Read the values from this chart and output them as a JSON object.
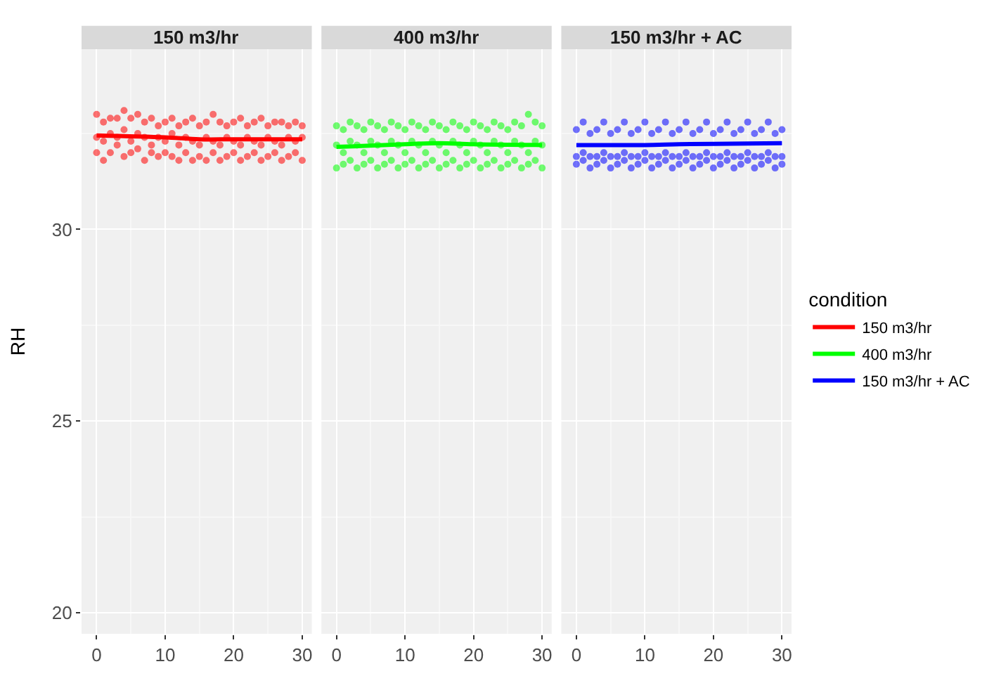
{
  "chart_data": [
    {
      "type": "scatter",
      "title": "150 m3/hr",
      "ylabel": "RH",
      "xlim": [
        -2.2,
        31.4
      ],
      "ylim": [
        19.45,
        34.7
      ],
      "xticks": [
        0,
        10,
        20,
        30
      ],
      "yticks": [
        20,
        25,
        30
      ],
      "grid": true,
      "series": [
        {
          "marker": "circle",
          "color": "#ff0000",
          "x": [
            0,
            0,
            0,
            1,
            1,
            1,
            2,
            2,
            2,
            3,
            3,
            3,
            4,
            4,
            4,
            5,
            5,
            5,
            6,
            6,
            6,
            7,
            7,
            7,
            8,
            8,
            8,
            9,
            9,
            9,
            10,
            10,
            10,
            11,
            11,
            11,
            12,
            12,
            12,
            13,
            13,
            13,
            14,
            14,
            14,
            15,
            15,
            15,
            16,
            16,
            16,
            17,
            17,
            17,
            18,
            18,
            18,
            19,
            19,
            19,
            20,
            20,
            20,
            21,
            21,
            21,
            22,
            22,
            22,
            23,
            23,
            23,
            24,
            24,
            24,
            25,
            25,
            25,
            26,
            26,
            26,
            27,
            27,
            27,
            28,
            28,
            28,
            29,
            29,
            29,
            30,
            30,
            30
          ],
          "values": [
            33.0,
            32.4,
            32.0,
            32.8,
            32.3,
            31.8,
            32.9,
            32.5,
            32.0,
            32.9,
            32.4,
            32.2,
            33.1,
            32.6,
            31.9,
            32.9,
            32.3,
            32.0,
            33.0,
            32.5,
            32.1,
            32.8,
            32.4,
            31.8,
            32.9,
            32.2,
            32.0,
            32.7,
            32.4,
            31.9,
            32.8,
            32.3,
            32.0,
            32.9,
            32.5,
            31.9,
            32.7,
            32.2,
            31.8,
            32.8,
            32.4,
            32.0,
            32.9,
            32.3,
            31.8,
            32.7,
            32.2,
            31.9,
            32.8,
            32.4,
            31.8,
            33.0,
            32.3,
            32.0,
            32.8,
            32.2,
            31.8,
            32.7,
            32.4,
            31.9,
            32.8,
            32.3,
            32.0,
            32.9,
            32.2,
            31.8,
            32.7,
            32.4,
            31.9,
            32.8,
            32.3,
            32.0,
            32.9,
            32.2,
            31.8,
            32.7,
            32.4,
            31.9,
            32.8,
            32.3,
            32.0,
            32.8,
            32.2,
            31.8,
            32.7,
            32.4,
            31.9,
            32.8,
            32.3,
            32.0,
            32.7,
            32.4,
            31.8
          ]
        },
        {
          "type": "line",
          "name": "150 m3/hr",
          "color": "#ff0000",
          "x": [
            0,
            10,
            15,
            20,
            30
          ],
          "values": [
            32.45,
            32.4,
            32.35,
            32.35,
            32.35
          ]
        }
      ]
    },
    {
      "type": "scatter",
      "title": "400 m3/hr",
      "xlim": [
        -2.2,
        31.4
      ],
      "ylim": [
        19.45,
        34.7
      ],
      "xticks": [
        0,
        10,
        20,
        30
      ],
      "yticks": [
        20,
        25,
        30
      ],
      "grid": true,
      "tick_labels": "x",
      "series": [
        {
          "marker": "circle",
          "color": "#00ff00",
          "x": [
            0,
            0,
            0,
            1,
            1,
            1,
            2,
            2,
            2,
            3,
            3,
            3,
            4,
            4,
            4,
            5,
            5,
            5,
            6,
            6,
            6,
            7,
            7,
            7,
            8,
            8,
            8,
            9,
            9,
            9,
            10,
            10,
            10,
            11,
            11,
            11,
            12,
            12,
            12,
            13,
            13,
            13,
            14,
            14,
            14,
            15,
            15,
            15,
            16,
            16,
            16,
            17,
            17,
            17,
            18,
            18,
            18,
            19,
            19,
            19,
            20,
            20,
            20,
            21,
            21,
            21,
            22,
            22,
            22,
            23,
            23,
            23,
            24,
            24,
            24,
            25,
            25,
            25,
            26,
            26,
            26,
            27,
            27,
            27,
            28,
            28,
            28,
            29,
            29,
            29,
            30,
            30,
            30
          ],
          "values": [
            32.7,
            32.2,
            31.6,
            32.6,
            32.0,
            31.7,
            32.8,
            32.3,
            31.8,
            32.7,
            32.2,
            31.6,
            32.6,
            32.0,
            31.7,
            32.8,
            32.3,
            31.8,
            32.7,
            32.2,
            31.6,
            32.6,
            32.0,
            31.7,
            32.8,
            32.3,
            31.8,
            32.7,
            32.2,
            31.6,
            32.6,
            32.0,
            31.7,
            32.8,
            32.3,
            31.8,
            32.7,
            32.2,
            31.6,
            32.6,
            32.0,
            31.7,
            32.8,
            32.3,
            31.8,
            32.7,
            32.2,
            31.6,
            32.6,
            32.0,
            31.7,
            32.8,
            32.3,
            31.8,
            32.7,
            32.2,
            31.6,
            32.6,
            32.0,
            31.7,
            32.8,
            32.3,
            31.8,
            32.7,
            32.2,
            31.6,
            32.6,
            32.0,
            31.7,
            32.8,
            32.3,
            31.8,
            32.7,
            32.2,
            31.6,
            32.6,
            32.0,
            31.7,
            32.8,
            32.3,
            31.8,
            32.7,
            32.2,
            31.6,
            33.0,
            32.0,
            31.7,
            32.8,
            32.3,
            31.8,
            32.7,
            32.2,
            31.6
          ]
        },
        {
          "type": "line",
          "name": "400 m3/hr",
          "color": "#00ff00",
          "x": [
            0,
            10,
            15,
            20,
            30
          ],
          "values": [
            32.15,
            32.22,
            32.25,
            32.22,
            32.2
          ]
        }
      ]
    },
    {
      "type": "scatter",
      "title": "150 m3/hr + AC",
      "xlim": [
        -2.2,
        31.4
      ],
      "ylim": [
        19.45,
        34.7
      ],
      "xticks": [
        0,
        10,
        20,
        30
      ],
      "yticks": [
        20,
        25,
        30
      ],
      "grid": true,
      "tick_labels": "x",
      "legend": "right",
      "legend_title": "condition",
      "series": [
        {
          "marker": "circle",
          "color": "#0000ff",
          "x": [
            0,
            0,
            0,
            1,
            1,
            1,
            2,
            2,
            2,
            3,
            3,
            3,
            4,
            4,
            4,
            5,
            5,
            5,
            6,
            6,
            6,
            7,
            7,
            7,
            8,
            8,
            8,
            9,
            9,
            9,
            10,
            10,
            10,
            11,
            11,
            11,
            12,
            12,
            12,
            13,
            13,
            13,
            14,
            14,
            14,
            15,
            15,
            15,
            16,
            16,
            16,
            17,
            17,
            17,
            18,
            18,
            18,
            19,
            19,
            19,
            20,
            20,
            20,
            21,
            21,
            21,
            22,
            22,
            22,
            23,
            23,
            23,
            24,
            24,
            24,
            25,
            25,
            25,
            26,
            26,
            26,
            27,
            27,
            27,
            28,
            28,
            28,
            29,
            29,
            29,
            30,
            30,
            30
          ],
          "values": [
            32.6,
            31.9,
            31.7,
            32.8,
            32.0,
            31.8,
            32.5,
            31.9,
            31.6,
            32.6,
            31.9,
            31.7,
            32.8,
            32.0,
            31.8,
            32.5,
            31.9,
            31.6,
            32.6,
            31.9,
            31.7,
            32.8,
            32.0,
            31.8,
            32.5,
            31.9,
            31.6,
            32.6,
            31.9,
            31.7,
            32.8,
            32.0,
            31.8,
            32.5,
            31.9,
            31.6,
            32.6,
            31.9,
            31.7,
            32.8,
            32.0,
            31.8,
            32.5,
            31.9,
            31.6,
            32.6,
            31.9,
            31.7,
            32.8,
            32.0,
            31.8,
            32.5,
            31.9,
            31.6,
            32.6,
            31.9,
            31.7,
            32.8,
            32.0,
            31.8,
            32.5,
            31.9,
            31.6,
            32.6,
            31.9,
            31.7,
            32.8,
            32.0,
            31.8,
            32.5,
            31.9,
            31.6,
            32.6,
            31.9,
            31.7,
            32.8,
            32.0,
            31.8,
            32.5,
            31.9,
            31.6,
            32.6,
            31.9,
            31.7,
            32.8,
            32.0,
            31.8,
            32.5,
            31.9,
            31.6,
            32.6,
            31.9,
            31.7
          ]
        },
        {
          "type": "line",
          "name": "150 m3/hr + AC",
          "color": "#0000ff",
          "x": [
            0,
            10,
            15,
            20,
            30
          ],
          "values": [
            32.2,
            32.2,
            32.22,
            32.23,
            32.25
          ]
        }
      ]
    }
  ]
}
